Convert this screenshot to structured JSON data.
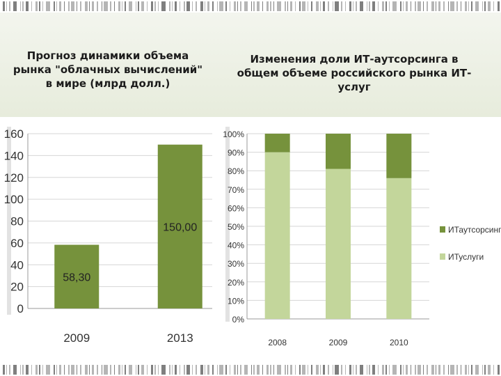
{
  "titles": {
    "left": "Прогноз динамики объема рынка \"облачных вычислений\" в мире (млрд долл.)",
    "right": "Изменения доли ИТ-аутсорсинга в общем объеме российского рынка ИТ-услуг"
  },
  "colors": {
    "dark_green": "#76923c",
    "light_green": "#c3d69b",
    "grid": "#d6d6d6"
  },
  "chart_data": [
    {
      "type": "bar",
      "title": "Прогноз динамики объема рынка \"облачных вычислений\" в мире (млрд долл.)",
      "categories": [
        "2009",
        "2013"
      ],
      "values": [
        58.3,
        150.0
      ],
      "data_labels": [
        "58,30",
        "150,00"
      ],
      "yticks": [
        "0",
        "20",
        "40",
        "60",
        "80",
        "100",
        "120",
        "140",
        "160"
      ],
      "ylim": [
        0,
        160
      ],
      "grid": true,
      "legend": "none"
    },
    {
      "type": "bar",
      "stacked": true,
      "title": "Изменения доли ИТ-аутсорсинга в общем объеме российского рынка ИТ-услуг",
      "categories": [
        "2008",
        "2009",
        "2010"
      ],
      "series": [
        {
          "name": "ИТуслуги",
          "values": [
            90,
            81,
            76
          ]
        },
        {
          "name": "ИТаутсорсинг",
          "values": [
            10,
            19,
            24
          ]
        }
      ],
      "yticks": [
        "0%",
        "10%",
        "20%",
        "30%",
        "40%",
        "50%",
        "60%",
        "70%",
        "80%",
        "90%",
        "100%"
      ],
      "ylim": [
        0,
        100
      ],
      "grid": true,
      "legend": "right"
    }
  ]
}
